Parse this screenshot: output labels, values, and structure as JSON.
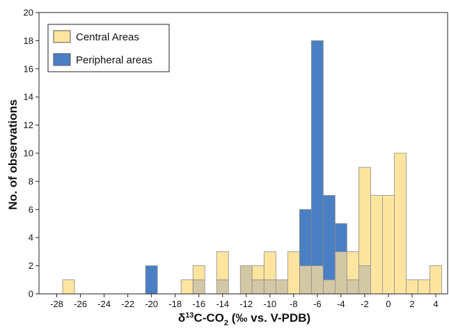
{
  "chart_data": {
    "type": "bar",
    "subtype": "overlapping-histogram",
    "title": "",
    "xlabel_parts": {
      "pre": "δ",
      "sup": "13",
      "mid": "C-CO",
      "sub": "2",
      "post": " (‰ vs. V-PDB)"
    },
    "ylabel": "No. of observations",
    "xlim": [
      -29.5,
      5
    ],
    "ylim": [
      0,
      20
    ],
    "bin_width": 1,
    "xticks": [
      -28,
      -26,
      -24,
      -22,
      -20,
      -18,
      -16,
      -14,
      -12,
      -10,
      -8,
      -6,
      -4,
      -2,
      0,
      2,
      4
    ],
    "yticks": [
      0,
      2,
      4,
      6,
      8,
      10,
      12,
      14,
      16,
      18,
      20
    ],
    "grid": false,
    "legend_position": "top-left",
    "colors": {
      "central": "#fde5a0",
      "peripheral": "#4a7fc4",
      "overlap": "#d3c8a6",
      "bar_edge": "#8a8a8a",
      "axis": "#222222"
    },
    "series": [
      {
        "name": "Central Areas",
        "bins": [
          {
            "x": -27,
            "value": 1
          },
          {
            "x": -17,
            "value": 1
          },
          {
            "x": -16,
            "value": 2
          },
          {
            "x": -14,
            "value": 3
          },
          {
            "x": -12,
            "value": 2
          },
          {
            "x": -11,
            "value": 2
          },
          {
            "x": -10,
            "value": 3
          },
          {
            "x": -9,
            "value": 1
          },
          {
            "x": -8,
            "value": 3
          },
          {
            "x": -7,
            "value": 2
          },
          {
            "x": -6,
            "value": 2
          },
          {
            "x": -5,
            "value": 1
          },
          {
            "x": -4,
            "value": 3
          },
          {
            "x": -3,
            "value": 3
          },
          {
            "x": -2,
            "value": 9
          },
          {
            "x": -1,
            "value": 7
          },
          {
            "x": 0,
            "value": 7
          },
          {
            "x": 1,
            "value": 10
          },
          {
            "x": 2,
            "value": 1
          },
          {
            "x": 3,
            "value": 1
          },
          {
            "x": 4,
            "value": 2
          }
        ]
      },
      {
        "name": "Peripheral areas",
        "bins": [
          {
            "x": -20,
            "value": 2
          },
          {
            "x": -16,
            "value": 1
          },
          {
            "x": -14,
            "value": 1
          },
          {
            "x": -12,
            "value": 2
          },
          {
            "x": -11,
            "value": 1
          },
          {
            "x": -10,
            "value": 1
          },
          {
            "x": -9,
            "value": 1
          },
          {
            "x": -7,
            "value": 6
          },
          {
            "x": -6,
            "value": 18
          },
          {
            "x": -5,
            "value": 7
          },
          {
            "x": -4,
            "value": 5
          },
          {
            "x": -3,
            "value": 1
          },
          {
            "x": -2,
            "value": 2
          }
        ]
      }
    ]
  }
}
